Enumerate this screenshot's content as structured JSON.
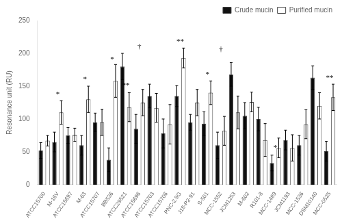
{
  "chart_data": {
    "type": "bar",
    "categories": [
      "ATCC15700",
      "M-16V",
      "ATCC15697",
      "M-63",
      "ATCC15707",
      "BB536",
      "ATCC29521",
      "ATCC15696",
      "ATCC15703",
      "ATCC15706",
      "PNC-2.9G",
      "J18-P2-91",
      "S-501",
      "MCC-1552",
      "JCM1253",
      "M-602",
      "R101-8",
      "MCC-1489",
      "JCM1193",
      "MCC-1536",
      "DSM10140",
      "MCC-0525"
    ],
    "series": [
      {
        "name": "Crude mucin",
        "color": "#111111",
        "values": [
          52,
          65,
          75,
          60,
          95,
          38,
          180,
          85,
          135,
          78,
          135,
          95,
          93,
          60,
          168,
          105,
          100,
          33,
          68,
          60,
          163,
          51
        ],
        "errors": [
          12,
          15,
          12,
          15,
          14,
          18,
          20,
          22,
          18,
          22,
          16,
          12,
          18,
          20,
          18,
          20,
          18,
          12,
          15,
          15,
          18,
          15
        ]
      },
      {
        "name": "Purified mucin",
        "color": "#ffffff",
        "values": [
          67,
          110,
          76,
          130,
          95,
          158,
          118,
          125,
          117,
          92,
          193,
          125,
          140,
          82,
          110,
          126,
          68,
          56,
          56,
          92,
          120,
          133
        ],
        "errors": [
          8,
          18,
          10,
          20,
          20,
          25,
          22,
          20,
          22,
          30,
          15,
          20,
          18,
          22,
          25,
          15,
          25,
          15,
          20,
          22,
          20,
          20
        ]
      }
    ],
    "annotations": [
      null,
      "*",
      null,
      "*",
      null,
      "*",
      "**",
      "†",
      null,
      null,
      "**",
      null,
      "*",
      "†",
      null,
      null,
      null,
      "*",
      null,
      null,
      null,
      "**"
    ],
    "annotation_y": [
      null,
      132,
      null,
      155,
      null,
      185,
      145,
      205,
      null,
      null,
      212,
      null,
      162,
      200,
      null,
      null,
      null,
      50,
      null,
      null,
      null,
      157
    ],
    "ylabel": "Resonance unit (RU)",
    "ylim": [
      0,
      250
    ],
    "yticks": [
      0,
      50,
      100,
      150,
      200,
      250
    ],
    "legend": "upper right",
    "grid": false
  }
}
